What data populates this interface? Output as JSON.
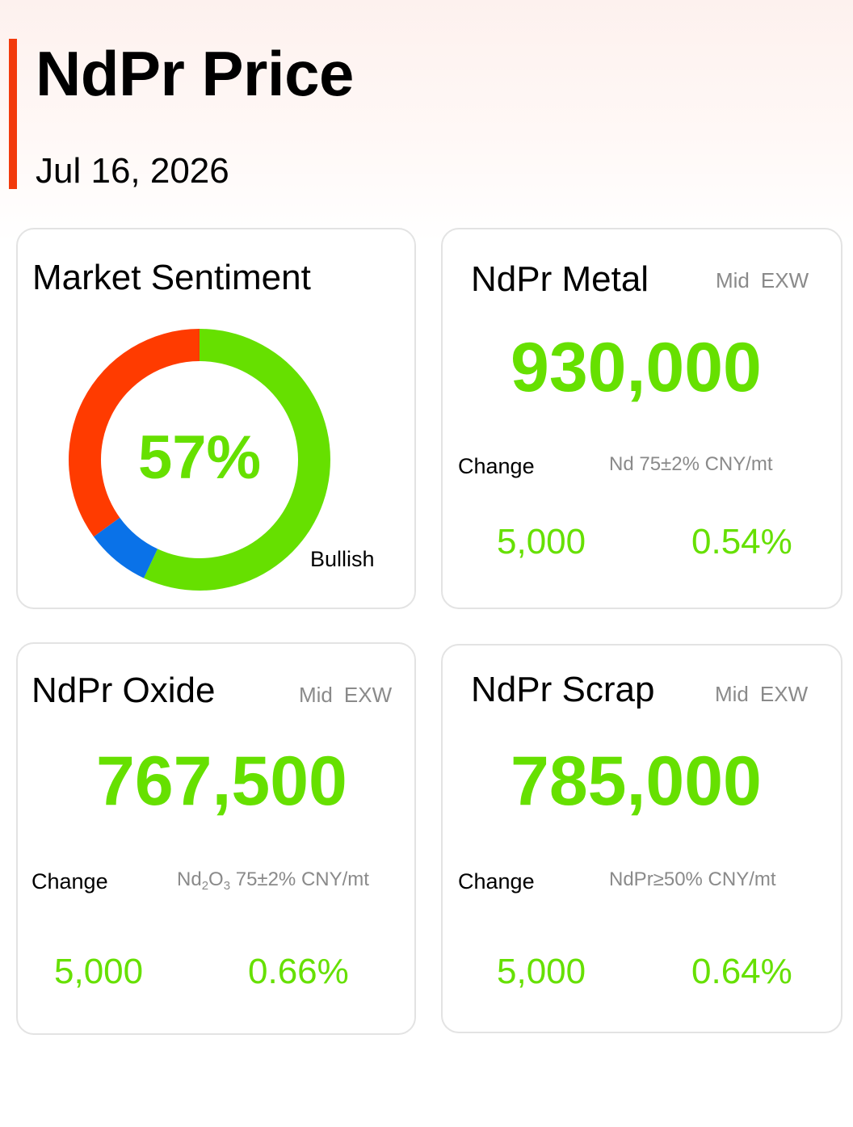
{
  "header": {
    "title": "NdPr Price",
    "date": "Jul 16, 2026"
  },
  "colors": {
    "accent": "#f23a0c",
    "positive": "#66e000",
    "bearish": "#ff3b00",
    "neutral": "#0a72e8",
    "bullish": "#66e000"
  },
  "sentiment": {
    "title": "Market Sentiment",
    "percent_label": "57%",
    "label": "Bullish",
    "segments": [
      {
        "name": "Bullish",
        "value": 0.57,
        "color": "#66e000"
      },
      {
        "name": "Neutral",
        "value": 0.08,
        "color": "#0a72e8"
      },
      {
        "name": "Bearish",
        "value": 0.35,
        "color": "#ff3b00"
      }
    ]
  },
  "metal": {
    "title": "NdPr Metal",
    "meta_type": "Mid",
    "meta_basis": "EXW",
    "price": "930,000",
    "change_label": "Change",
    "spec": "Nd 75±2% CNY/mt",
    "change_abs": "5,000",
    "change_pct": "0.54%"
  },
  "oxide": {
    "title": "NdPr Oxide",
    "meta_type": "Mid",
    "meta_basis": "EXW",
    "price": "767,500",
    "change_label": "Change",
    "spec_prefix": "Nd",
    "spec_sub1": "2",
    "spec_mid": "O",
    "spec_sub2": "3",
    "spec_suffix": " 75±2% CNY/mt",
    "change_abs": "5,000",
    "change_pct": "0.66%"
  },
  "scrap": {
    "title": "NdPr Scrap",
    "meta_type": "Mid",
    "meta_basis": "EXW",
    "price": "785,000",
    "change_label": "Change",
    "spec": "NdPr≥50% CNY/mt",
    "change_abs": "5,000",
    "change_pct": "0.64%"
  }
}
